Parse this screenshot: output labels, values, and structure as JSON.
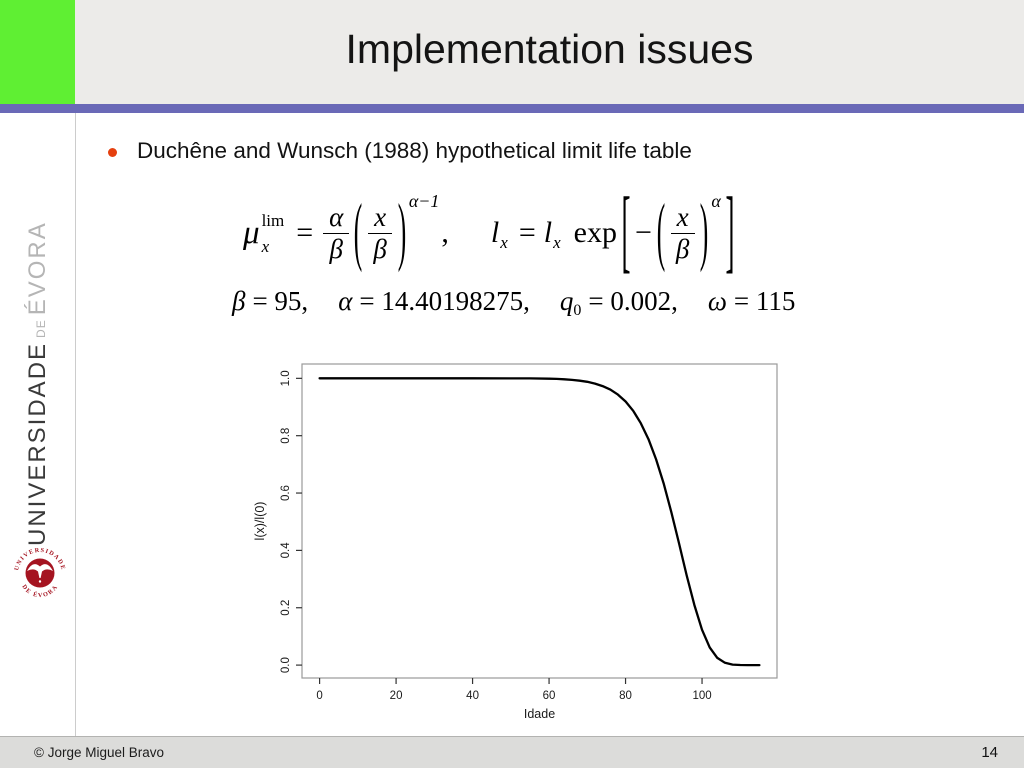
{
  "slide": {
    "title": "Implementation issues",
    "bullet_text": "Duchêne and Wunsch (1988) hypothetical limit life table",
    "footer_copyright": "© Jorge Miguel Bravo",
    "page_number": "14"
  },
  "sidebar": {
    "university_primary": "UNIVERSIDADE",
    "university_de": "DE",
    "university_secondary": "ÉVORA",
    "logo_ring_top": "UNIVERSIDADE",
    "logo_ring_bottom": "DE ÉVORA"
  },
  "formulas": {
    "f1": {
      "mu": "μ",
      "sup": "lim",
      "sub": "x",
      "equals": "=",
      "frac1_num": "α",
      "frac1_den": "β",
      "lparen": "(",
      "frac2_num": "x",
      "frac2_den": "β",
      "rparen": ")",
      "power": "α−1",
      "comma": ","
    },
    "f2": {
      "l1": "l",
      "l1_sub": "x",
      "equals": "=",
      "l2": "l",
      "l2_sub": "x",
      "exp": "exp",
      "lbracket": "[",
      "minus": "−",
      "lparen": "(",
      "num": "x",
      "den": "β",
      "rparen": ")",
      "power": "α",
      "rbracket": "]"
    },
    "parameters": [
      {
        "sym": "β",
        "sub": "",
        "val": "= 95,"
      },
      {
        "sym": "α",
        "sub": "",
        "val": "= 14.40198275,"
      },
      {
        "sym": "q",
        "sub": "0",
        "val": "= 0.002,"
      },
      {
        "sym": "ω",
        "sub": "",
        "val": "= 115"
      }
    ]
  },
  "colors": {
    "accent_green": "#5fef33",
    "accent_purple": "#6a69b7",
    "titlebar_bg": "#ecebe9",
    "footer_bg": "#dcdcda",
    "bullet": "#e5400f",
    "curve": "#000000",
    "logo_red": "#a51421"
  },
  "chart_data": {
    "type": "line",
    "title": "",
    "xlabel": "Idade",
    "ylabel": "l(x)/l(0)",
    "xticks": [
      0,
      20,
      40,
      60,
      80,
      100
    ],
    "yticks": [
      "0.0",
      "0.2",
      "0.4",
      "0.6",
      "0.8",
      "1.0"
    ],
    "xlim": [
      -4.6,
      119.6
    ],
    "ylim": [
      -0.045,
      1.05
    ],
    "grid": false,
    "legend": false,
    "box": true,
    "series": [
      {
        "name": "l(x)/l(0)",
        "x": [
          0,
          10,
          20,
          30,
          40,
          50,
          55,
          60,
          62,
          64,
          66,
          68,
          70,
          72,
          74,
          76,
          78,
          80,
          82,
          84,
          86,
          88,
          90,
          92,
          94,
          95,
          96,
          98,
          100,
          102,
          104,
          106,
          108,
          110,
          112,
          115
        ],
        "y": [
          1,
          1,
          1,
          1,
          1,
          0.9999,
          0.9997,
          0.9987,
          0.9979,
          0.9966,
          0.9947,
          0.9919,
          0.9878,
          0.9817,
          0.973,
          0.9606,
          0.9432,
          0.9194,
          0.8869,
          0.8437,
          0.7878,
          0.7174,
          0.6319,
          0.5326,
          0.4237,
          0.3679,
          0.3126,
          0.2091,
          0.1233,
          0.0618,
          0.0252,
          0.0079,
          0.0018,
          0.0003,
          0.0,
          0.0
        ]
      }
    ]
  }
}
